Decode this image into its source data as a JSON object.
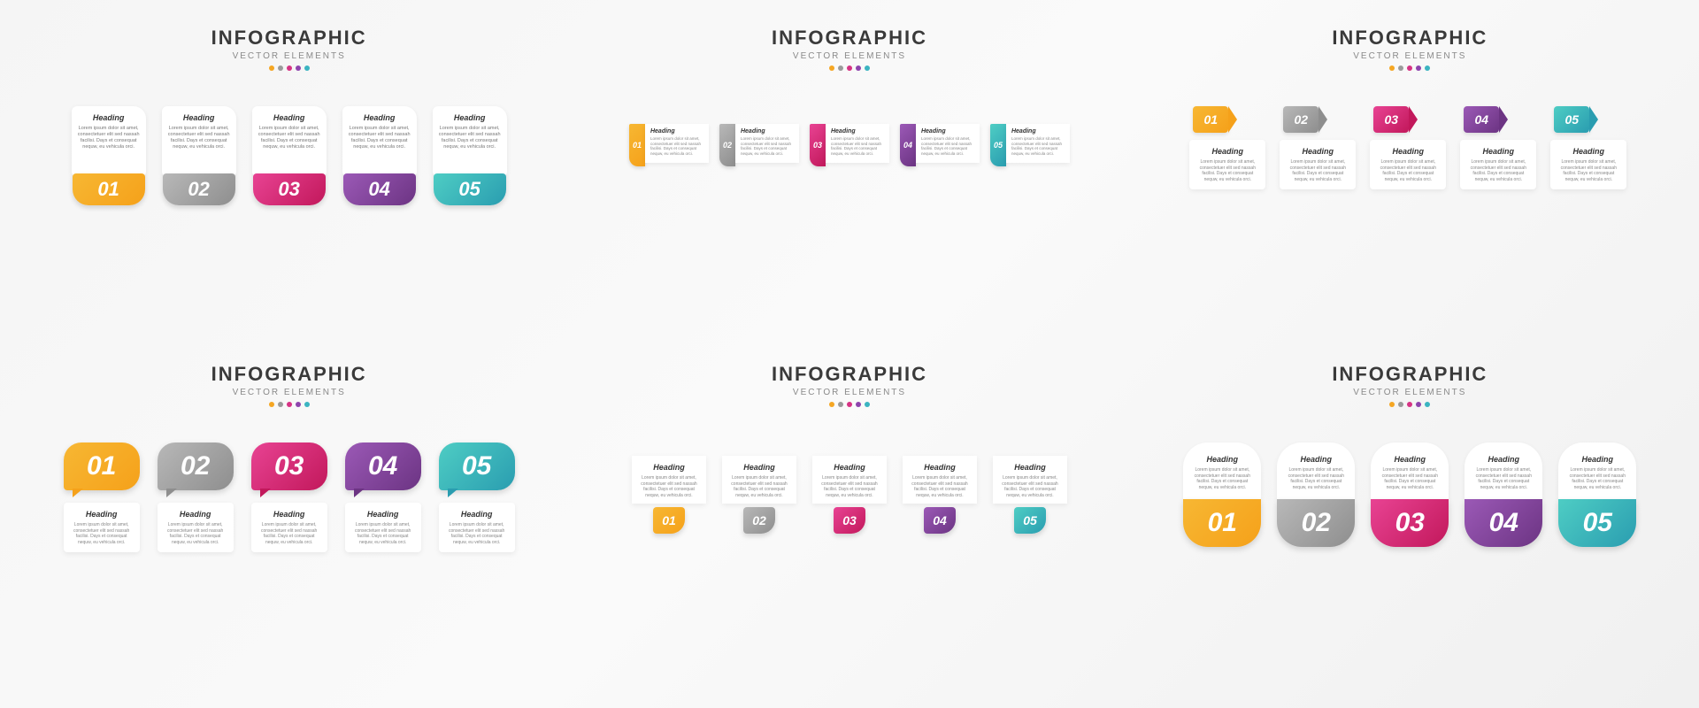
{
  "global": {
    "title": "INFOGRAPHIC",
    "subtitle": "VECTOR ELEMENTS",
    "dot_colors": [
      "#f5a623",
      "#9b9b9b",
      "#d63384",
      "#8e44ad",
      "#3bb4c1"
    ]
  },
  "heading_label": "Heading",
  "lorem": "Lorem ipsum dolor sit amet, consectetuer elit sed nassah facilisi. Days et consequat nequw, eu vehicula orci.",
  "items": [
    {
      "num": "01",
      "grad_from": "#f7b733",
      "grad_to": "#f5a11a",
      "solid": "#f5a623"
    },
    {
      "num": "02",
      "grad_from": "#b8b8b8",
      "grad_to": "#8e8e8e",
      "solid": "#9b9b9b"
    },
    {
      "num": "03",
      "grad_from": "#e84393",
      "grad_to": "#c2185b",
      "solid": "#d63384"
    },
    {
      "num": "04",
      "grad_from": "#9b59b6",
      "grad_to": "#6c3483",
      "solid": "#8e44ad"
    },
    {
      "num": "05",
      "grad_from": "#4ecdc4",
      "grad_to": "#2a9db0",
      "solid": "#3bb4c1"
    }
  ],
  "styling": {
    "background": "#f5f5f5",
    "card_bg": "#ffffff",
    "title_fontsize": 22,
    "title_color": "#3a3a3a",
    "subtitle_fontsize": 10,
    "subtitle_color": "#8a8a8a",
    "heading_fontsize": 9,
    "body_fontsize": 5,
    "body_color": "#888888",
    "number_color": "#ffffff",
    "p1_number_fontsize": 22,
    "p2_number_fontsize": 9,
    "p3_number_fontsize": 14,
    "p4_number_fontsize": 30,
    "p5_number_fontsize": 14,
    "p6_number_fontsize": 30,
    "shadow": "0 2px 6px rgba(0,0,0,.1)"
  },
  "panels": [
    {
      "type": "card-over-plate",
      "position": "top-left"
    },
    {
      "type": "side-stripe",
      "position": "top-center"
    },
    {
      "type": "arrow-tag",
      "position": "top-right"
    },
    {
      "type": "speech-bubble",
      "position": "bottom-left"
    },
    {
      "type": "leaf-badge",
      "position": "bottom-center"
    },
    {
      "type": "pill-capsule",
      "position": "bottom-right"
    }
  ]
}
